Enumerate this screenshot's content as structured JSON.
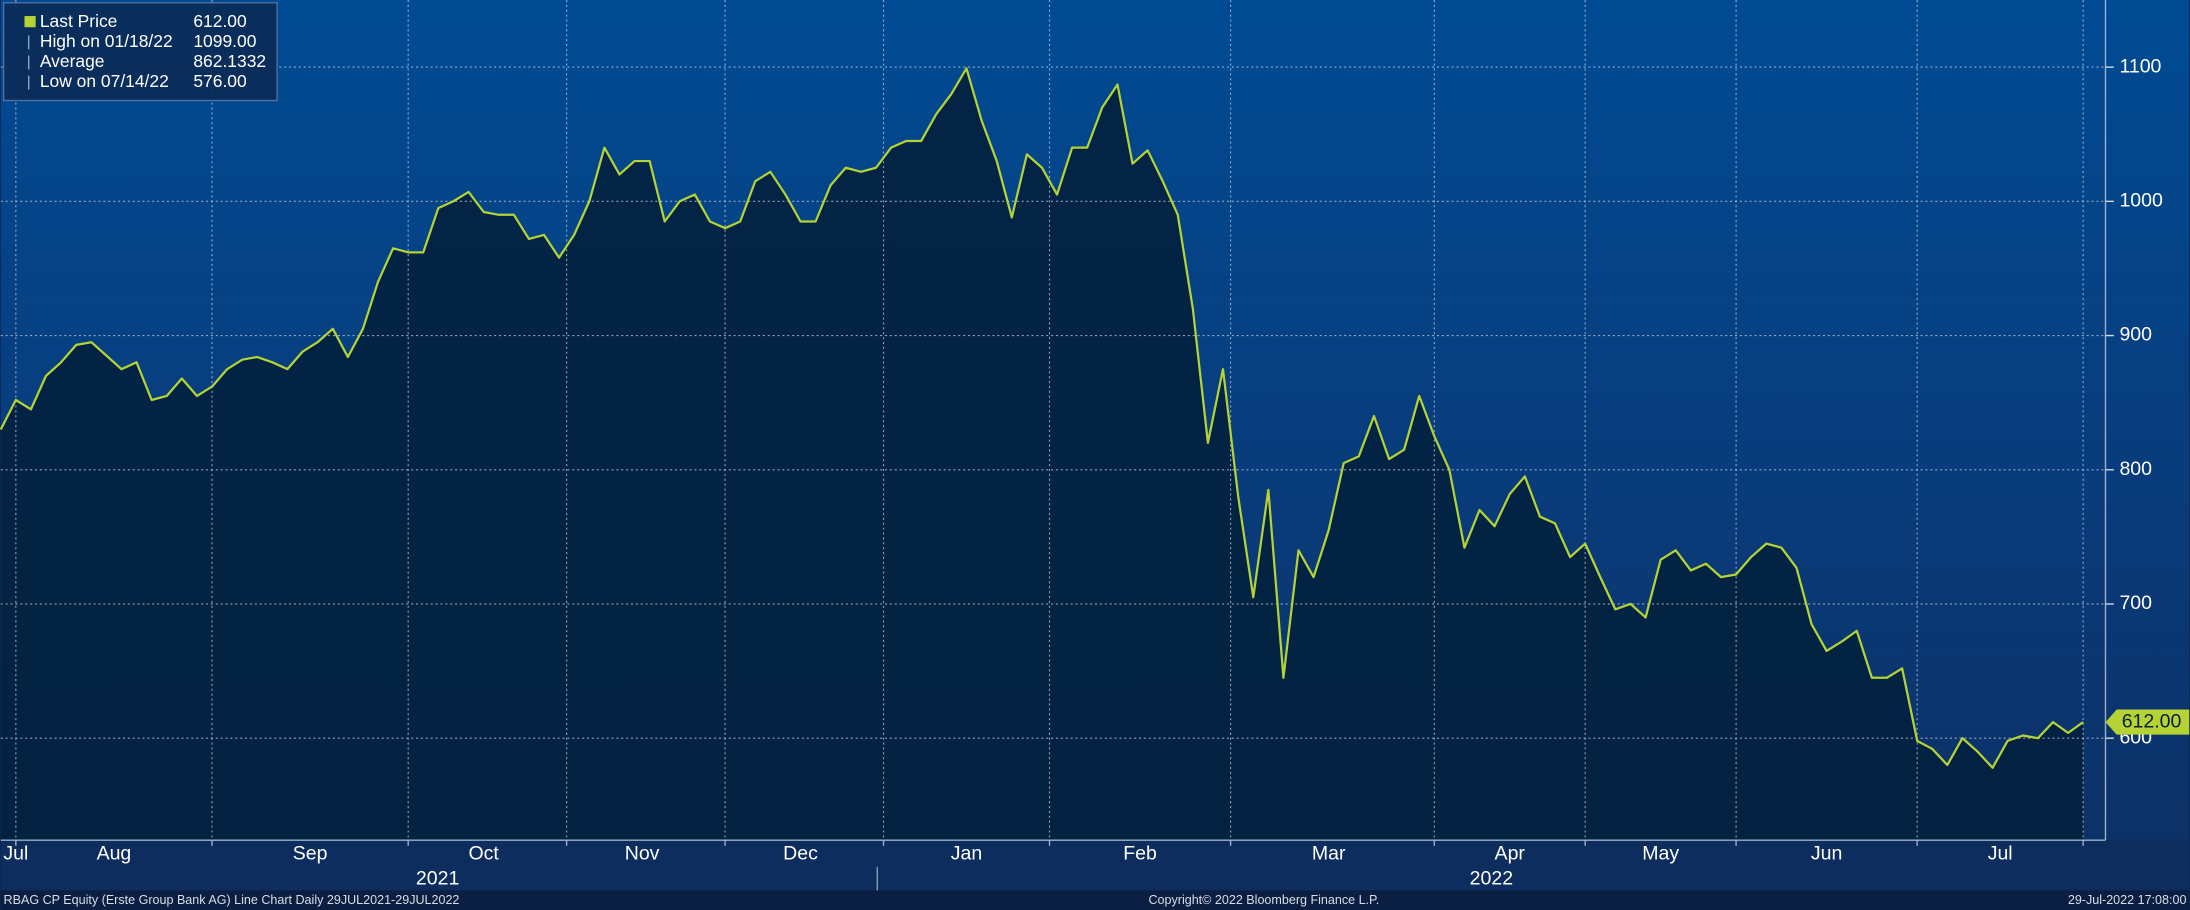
{
  "chart_data": {
    "type": "line",
    "series": [
      {
        "name": "Last Price",
        "color": "#b5d334",
        "values": [
          830,
          852,
          845,
          870,
          880,
          893,
          895,
          885,
          875,
          880,
          852,
          855,
          868,
          855,
          862,
          875,
          882,
          884,
          880,
          875,
          888,
          895,
          905,
          884,
          905,
          940,
          965,
          962,
          962,
          995,
          1000,
          1007,
          992,
          990,
          990,
          972,
          975,
          958,
          975,
          1000,
          1040,
          1020,
          1030,
          1030,
          985,
          1000,
          1005,
          985,
          980,
          985,
          1015,
          1022,
          1005,
          985,
          985,
          1012,
          1025,
          1022,
          1025,
          1040,
          1045,
          1045,
          1065,
          1080,
          1099,
          1060,
          1030,
          988,
          1035,
          1025,
          1005,
          1040,
          1040,
          1070,
          1087,
          1028,
          1038,
          1015,
          990,
          920,
          820,
          875,
          780,
          705,
          785,
          645,
          740,
          720,
          755,
          805,
          810,
          840,
          808,
          815,
          855,
          825,
          800,
          742,
          770,
          758,
          782,
          795,
          765,
          760,
          735,
          745,
          720,
          696,
          700,
          690,
          733,
          740,
          725,
          730,
          720,
          722,
          735,
          745,
          742,
          727,
          685,
          665,
          672,
          680,
          645,
          645,
          652,
          598,
          592,
          580,
          600,
          590,
          578,
          598,
          602,
          600,
          612,
          604,
          612
        ]
      }
    ],
    "ylim": [
      524,
      1150
    ],
    "yticks": [
      600,
      700,
      800,
      900,
      1000,
      1100
    ],
    "xticks": [
      {
        "value": 1,
        "label": "Jul"
      },
      {
        "value": 7.5,
        "label": "Aug"
      },
      {
        "value": 20.5,
        "label": "Sep"
      },
      {
        "value": 32,
        "label": "Oct"
      },
      {
        "value": 42.5,
        "label": "Nov"
      },
      {
        "value": 53,
        "label": "Dec"
      },
      {
        "value": 64,
        "label": "Jan"
      },
      {
        "value": 75.5,
        "label": "Feb"
      },
      {
        "value": 88,
        "label": "Mar"
      },
      {
        "value": 100,
        "label": "Apr"
      },
      {
        "value": 110,
        "label": "May"
      },
      {
        "value": 121,
        "label": "Jun"
      },
      {
        "value": 132.5,
        "label": "Jul"
      }
    ],
    "xgrid": [
      1,
      14,
      27,
      37.5,
      48,
      58.5,
      69.5,
      81.5,
      95,
      105,
      115,
      127,
      138
    ],
    "years": [
      "2021",
      "2022"
    ],
    "grid": true,
    "last_value_label": "612.00",
    "legend": [
      {
        "label": "Last Price",
        "value": "612.00"
      },
      {
        "label": "High on 01/18/22",
        "value": "1099.00"
      },
      {
        "label": "Average",
        "value": "862.1332"
      },
      {
        "label": "Low on 07/14/22",
        "value": "576.00"
      }
    ]
  },
  "footer": {
    "left": "RBAG CP Equity (Erste Group Bank AG) Line Chart  Daily 29JUL2021-29JUL2022",
    "center": "Copyright© 2022 Bloomberg Finance L.P.",
    "right": "29-Jul-2022 17:08:00"
  }
}
